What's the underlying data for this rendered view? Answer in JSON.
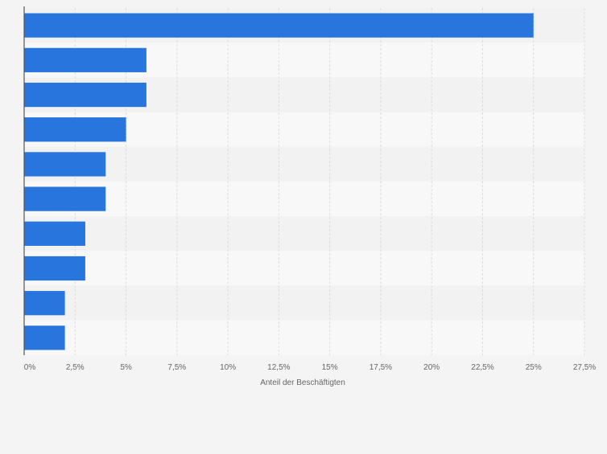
{
  "chart_data": {
    "type": "bar",
    "orientation": "horizontal",
    "categories": [
      "",
      "",
      "",
      "",
      "",
      "",
      "",
      "",
      "",
      ""
    ],
    "values": [
      25,
      6,
      6,
      5,
      4,
      4,
      3,
      3,
      2,
      2
    ],
    "xlabel": "Anteil der Beschäftigten",
    "ylabel": "",
    "xlim": [
      0,
      27.5
    ],
    "ticks": [
      0,
      2.5,
      5,
      7.5,
      10,
      12.5,
      15,
      17.5,
      20,
      22.5,
      25,
      27.5
    ],
    "tick_labels": [
      "0%",
      "2,5%",
      "5%",
      "7,5%",
      "10%",
      "12,5%",
      "15%",
      "17,5%",
      "20%",
      "22,5%",
      "25%",
      "27,5%"
    ],
    "grid": true,
    "legend": "none",
    "colors": {
      "bar": "#2876dd",
      "background": "#f4f4f4",
      "band_light": "#f8f8f8",
      "band_dark": "#f2f2f2",
      "grid": "#dcdcdc",
      "axis": "#555555",
      "text": "#666666"
    }
  }
}
